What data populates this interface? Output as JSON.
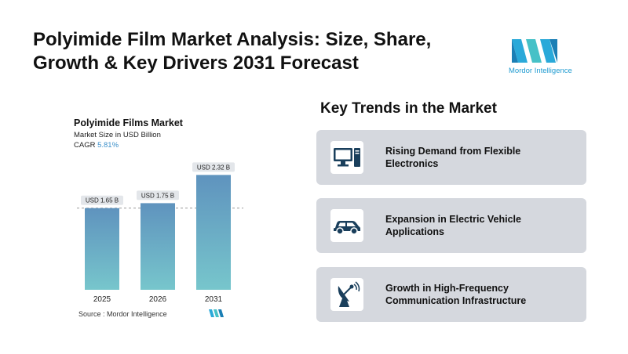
{
  "header": {
    "title_line1": "Polyimide Film Market Analysis: Size, Share,",
    "title_line2": "Growth & Key Drivers  2031 Forecast",
    "brand_name": "Mordor Intelligence"
  },
  "chart_data": {
    "type": "bar",
    "title": "Polyimide Films Market",
    "subtitle": "Market Size in USD Billion",
    "cagr_label": "CAGR",
    "cagr_value": "5.81%",
    "categories": [
      "2025",
      "2026",
      "2031"
    ],
    "values": [
      1.65,
      1.75,
      2.32
    ],
    "data_labels": [
      "USD 1.65 B",
      "USD 1.75 B",
      "USD 2.32 B"
    ],
    "ylim": [
      0,
      2.5
    ],
    "reference_line": 1.65,
    "bar_color_top": "#5f93be",
    "bar_color_bottom": "#77c6cc",
    "source_label": "Source :",
    "source_value": "Mordor Intelligence"
  },
  "trends": {
    "heading": "Key Trends in the Market",
    "items": [
      {
        "icon": "computer-icon",
        "label": "Rising Demand from Flexible Electronics"
      },
      {
        "icon": "car-icon",
        "label": "Expansion in Electric Vehicle Applications"
      },
      {
        "icon": "satellite-dish-icon",
        "label": "Growth in High-Frequency Communication Infrastructure"
      }
    ]
  },
  "colors": {
    "accent": "#1f9bd1",
    "icon_dark": "#1a3f5c",
    "card_bg": "#d5d8de"
  }
}
